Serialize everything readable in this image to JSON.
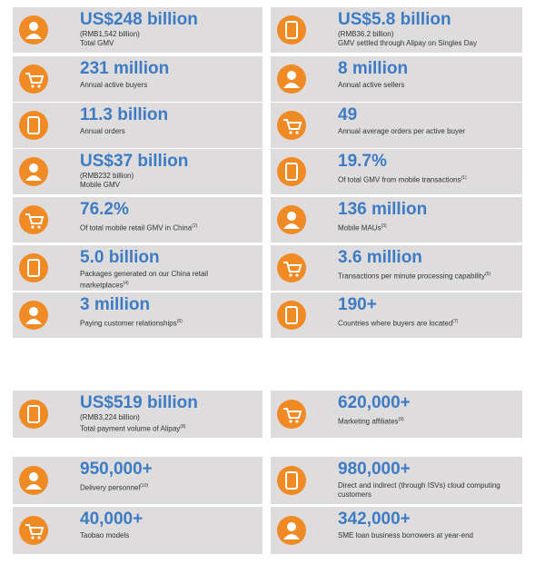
{
  "sections": [
    {
      "cards": [
        {
          "value": "US$248 billion",
          "sub": "(RMB1,542 billion)",
          "label": "Total GMV"
        },
        {
          "value": "US$5.8 billion",
          "sub": "(RMB36.2 billion)",
          "label": "GMV settled through Alipay on Singles Day"
        },
        {
          "value": "231 million",
          "label": "Annual active buyers"
        },
        {
          "value": "8 million",
          "label": "Annual active sellers"
        },
        {
          "value": "11.3 billion",
          "label": "Annual orders"
        },
        {
          "value": "49",
          "label": "Annual average orders per active buyer"
        },
        {
          "value": "US$37 billion",
          "sub": "(RMB232 billion)",
          "label": "Mobile GMV"
        },
        {
          "value": "19.7%",
          "label": "Of total GMV from mobile transactions",
          "note": "(1)"
        },
        {
          "value": "76.2%",
          "label": "Of total mobile retail GMV in China",
          "note": "(2)"
        },
        {
          "value": "136 million",
          "label": "Mobile MAUs",
          "note": "(3)"
        },
        {
          "value": "5.0 billion",
          "label": "Packages generated on our China retail marketplaces",
          "note": "(4)"
        },
        {
          "value": "3.6 million",
          "label": "Transactions per minute processing capability",
          "note": "(5)"
        },
        {
          "value": "3 million",
          "label": "Paying customer relationships",
          "note": "(6)"
        },
        {
          "value": "190+",
          "label": "Countries where buyers are located",
          "note": "(7)"
        }
      ]
    },
    {
      "cards": [
        {
          "value": "US$519 billion",
          "sub": "(RMB3,224 billion)",
          "label": "Total payment volume of Alipay",
          "note": "(8)"
        },
        {
          "value": "620,000+",
          "label": "Marketing affiliates",
          "note": "(9)"
        },
        {
          "value": "950,000+",
          "label": "Delivery personnel",
          "note": "(10)"
        },
        {
          "value": "980,000+",
          "label": "Direct and indirect (through ISVs) cloud computing customers"
        },
        {
          "value": "40,000+",
          "label": "Taobao models"
        },
        {
          "value": "342,000+",
          "label": "SME loan business borrowers at year-end"
        }
      ]
    }
  ]
}
